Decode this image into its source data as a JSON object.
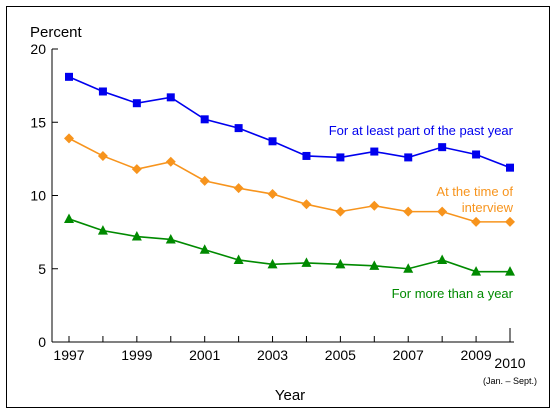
{
  "chart_data": {
    "type": "line",
    "ylabel": "Percent",
    "xlabel": "Year",
    "ylim": [
      0,
      20
    ],
    "yticks": [
      "0",
      "5",
      "10",
      "15",
      "20"
    ],
    "x": [
      1997,
      1998,
      1999,
      2000,
      2001,
      2002,
      2003,
      2004,
      2005,
      2006,
      2007,
      2008,
      2009,
      2010
    ],
    "xtick_labels": [
      "1997",
      "1999",
      "2001",
      "2003",
      "2005",
      "2007",
      "2009",
      "2010"
    ],
    "last_tick_note": "(Jan. – Sept.)",
    "grid": false,
    "series": [
      {
        "name": "For at least part of the past year",
        "label_lines": [
          "For at least part of the past year"
        ],
        "color": "#0000ee",
        "marker": "square",
        "values": [
          18.1,
          17.1,
          16.3,
          16.7,
          15.2,
          14.6,
          13.7,
          12.7,
          12.6,
          13.0,
          12.6,
          13.3,
          12.8,
          11.9
        ]
      },
      {
        "name": "At the time of interview",
        "label_lines": [
          "At the time of",
          "interview"
        ],
        "color": "#f7941d",
        "marker": "diamond",
        "values": [
          13.9,
          12.7,
          11.8,
          12.3,
          11.0,
          10.5,
          10.1,
          9.4,
          8.9,
          9.3,
          8.9,
          8.9,
          8.2,
          8.2
        ]
      },
      {
        "name": "For more than a year",
        "label_lines": [
          "For more than a year"
        ],
        "color": "#008a00",
        "marker": "triangle",
        "values": [
          8.4,
          7.6,
          7.2,
          7.0,
          6.3,
          5.6,
          5.3,
          5.4,
          5.3,
          5.2,
          5.0,
          5.6,
          4.8,
          4.8
        ]
      }
    ]
  }
}
